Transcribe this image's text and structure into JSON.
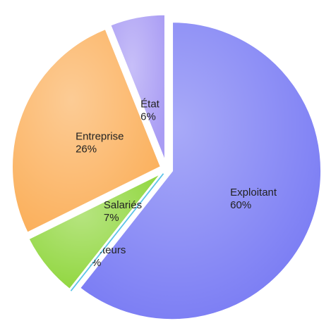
{
  "chart_data": {
    "type": "pie",
    "categories": [
      "Exploitant",
      "Prêteurs",
      "Salariés",
      "Entreprise",
      "État"
    ],
    "values": [
      60,
      0,
      7,
      26,
      6
    ],
    "value_labels": [
      "60%",
      "0%",
      "7%",
      "26%",
      "6%"
    ],
    "colors": [
      "#7a7cf4",
      "#5cc3e8",
      "#8fd63c",
      "#fbb05c",
      "#a99cf4"
    ]
  }
}
